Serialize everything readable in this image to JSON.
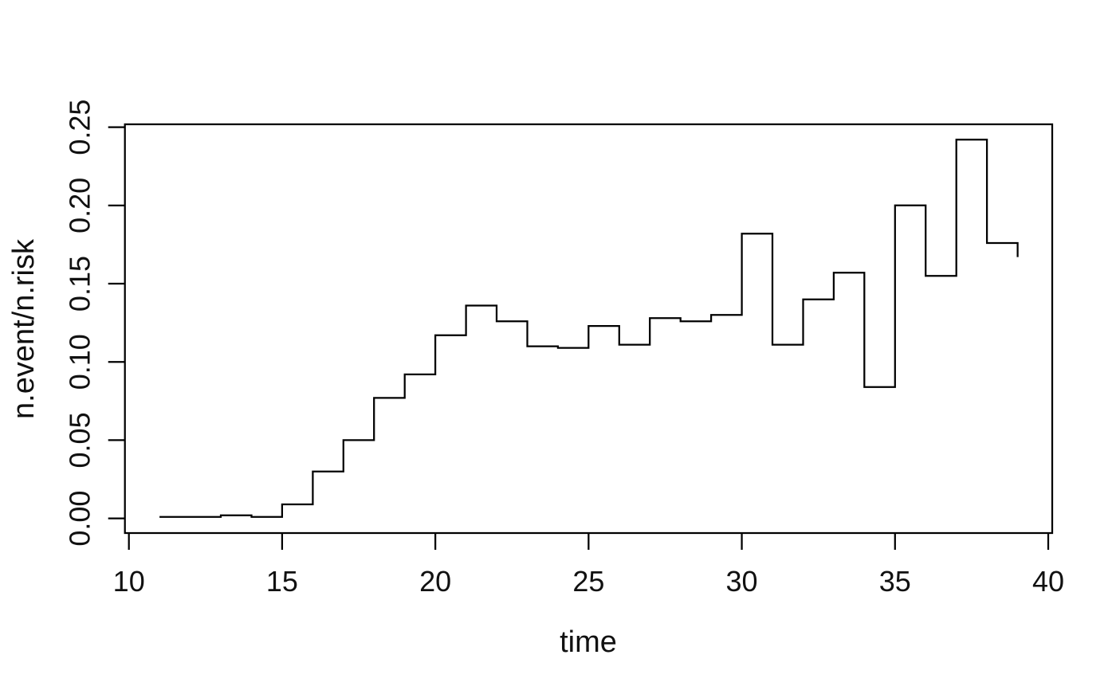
{
  "chart_data": {
    "type": "line",
    "subtype": "step",
    "title": "",
    "xlabel": "time",
    "ylabel": "n.event/n.risk",
    "x_ticks": [
      10,
      15,
      20,
      25,
      30,
      35,
      40
    ],
    "x_tick_labels": [
      "10",
      "15",
      "20",
      "25",
      "30",
      "35",
      "40"
    ],
    "y_ticks": [
      0.0,
      0.05,
      0.1,
      0.15,
      0.2,
      0.25
    ],
    "y_tick_labels": [
      "0.00",
      "0.05",
      "0.10",
      "0.15",
      "0.20",
      "0.25"
    ],
    "xlim": [
      9.87,
      40.13
    ],
    "ylim": [
      -0.00935,
      0.25185
    ],
    "grid": "off",
    "legend": "none",
    "line_color": "#000000",
    "series": [
      {
        "name": "n.event/n.risk",
        "step_style": "post",
        "x": [
          11,
          12,
          13,
          14,
          15,
          16,
          17,
          18,
          19,
          20,
          21,
          22,
          23,
          24,
          25,
          26,
          27,
          28,
          29,
          30,
          31,
          32,
          33,
          34,
          35,
          36,
          37,
          38,
          39
        ],
        "y": [
          0.001,
          0.001,
          0.002,
          0.001,
          0.009,
          0.03,
          0.05,
          0.077,
          0.092,
          0.117,
          0.136,
          0.126,
          0.11,
          0.109,
          0.123,
          0.111,
          0.128,
          0.126,
          0.13,
          0.182,
          0.111,
          0.14,
          0.157,
          0.084,
          0.2,
          0.155,
          0.242,
          0.176,
          0.167
        ]
      }
    ]
  }
}
